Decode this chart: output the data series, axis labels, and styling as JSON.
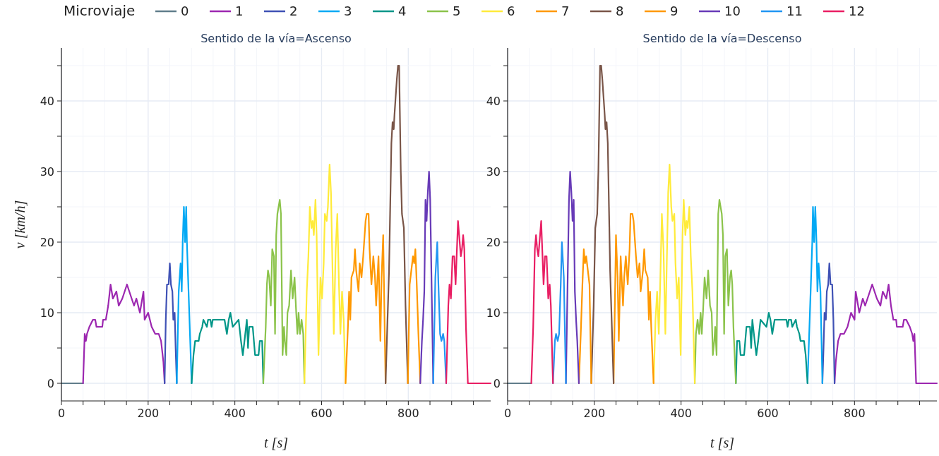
{
  "chart_data": [
    {
      "type": "line",
      "title": "Sentido de la vía=Ascenso",
      "xlabel": "t [s]",
      "ylabel": "v [km/h]",
      "legend_title": "Microviaje",
      "legend": "top",
      "grid": true,
      "xlim": [
        0,
        990
      ],
      "xticks": [
        0,
        {
          "value": 50,
          "label": null
        },
        {
          "value": 100,
          "label": null
        },
        {
          "value": 150,
          "label": null
        },
        200,
        {
          "value": 250,
          "label": null
        },
        {
          "value": 300,
          "label": null
        },
        {
          "value": 350,
          "label": null
        },
        400,
        {
          "value": 450,
          "label": null
        },
        {
          "value": 500,
          "label": null
        },
        {
          "value": 550,
          "label": null
        },
        600,
        {
          "value": 650,
          "label": null
        },
        {
          "value": 700,
          "label": null
        },
        {
          "value": 750,
          "label": null
        },
        800,
        {
          "value": 850,
          "label": null
        },
        {
          "value": 900,
          "label": null
        },
        {
          "value": 950,
          "label": null
        }
      ],
      "ylim": [
        -2.5,
        47.5
      ],
      "yticks": [
        0,
        {
          "value": 5,
          "label": null
        },
        10,
        {
          "value": 15,
          "label": null
        },
        20,
        {
          "value": 25,
          "label": null
        },
        30,
        {
          "value": 35,
          "label": null
        },
        40,
        {
          "value": 45,
          "label": null
        }
      ],
      "series": [
        {
          "name": "0",
          "color": "#607d8b",
          "x": [
            0,
            49.9
          ],
          "values": [
            0,
            0
          ]
        },
        {
          "name": "1",
          "color": "#9c27b0",
          "x": [
            49.9,
            53.7,
            56.4,
            59,
            64.5,
            72.6,
            78,
            80.8,
            94.3,
            96,
            102.4,
            107.9,
            113.3,
            118.7,
            126.8,
            132.2,
            140.4,
            145.8,
            151.2,
            156.6,
            162,
            167.5,
            172.9,
            181,
            183.7,
            189.2,
            191.9,
            200,
            208.1,
            216.3,
            224.4,
            229.8,
            235.2,
            238
          ],
          "values": [
            0,
            7,
            6,
            7,
            8,
            9,
            9,
            8,
            8,
            9,
            9,
            11,
            14,
            12,
            13,
            11,
            12,
            13,
            14,
            13,
            12,
            11,
            12,
            10,
            11,
            13,
            9,
            10,
            8,
            7,
            7,
            6,
            3,
            0
          ]
        },
        {
          "name": "2",
          "color": "#3f51b5",
          "x": [
            238,
            240.7,
            243.4,
            247.2,
            250,
            252.6,
            255.9,
            258,
            261.2,
            263.4,
            266
          ],
          "values": [
            0,
            9,
            14,
            14,
            17,
            14,
            13,
            9,
            10,
            5,
            0
          ]
        },
        {
          "name": "3",
          "color": "#03a9f4",
          "x": [
            266,
            270.5,
            274.8,
            277.5,
            279.7,
            282.4,
            285.1,
            287.8,
            289.4,
            292.1,
            300.3
          ],
          "values": [
            0,
            13,
            17,
            13,
            20,
            25,
            20,
            25,
            20,
            15,
            0
          ]
        },
        {
          "name": "4",
          "color": "#009688",
          "x": [
            300.3,
            304.6,
            308.4,
            316.5,
            319.2,
            324.7,
            327.4,
            335.5,
            338.2,
            343.6,
            346.3,
            349,
            376.2,
            381.6,
            385.9,
            389.7,
            395.1,
            408.7,
            414.1,
            418.4,
            422.2,
            427.6,
            430.3,
            433,
            441.2,
            446.6,
            454.7,
            457.5,
            462.9,
            465.6
          ],
          "values": [
            0,
            4,
            6,
            6,
            7,
            8,
            9,
            8,
            9,
            9,
            8,
            9,
            9,
            7,
            9,
            10,
            8,
            9,
            6,
            4,
            6,
            9,
            5,
            8,
            8,
            4,
            4,
            6,
            6,
            0
          ]
        },
        {
          "name": "5",
          "color": "#8bc34a",
          "x": [
            465.6,
            471.2,
            473.9,
            476.4,
            479.2,
            482.9,
            486.2,
            490,
            492.7,
            495.4,
            498.1,
            503.6,
            506.3,
            510.1,
            513.3,
            515.4,
            518.7,
            521.4,
            525.2,
            529.5,
            533.3,
            537.7,
            541.5,
            544.2,
            546.9,
            550.1,
            553.9,
            557.7,
            560.4
          ],
          "values": [
            0,
            8,
            14,
            16,
            15,
            11,
            19,
            18,
            7,
            21,
            24,
            26,
            24,
            4,
            8,
            6,
            4,
            10,
            11,
            16,
            12,
            15,
            10,
            7,
            10,
            7,
            9,
            7,
            0
          ]
        },
        {
          "name": "6",
          "color": "#ffeb3b",
          "x": [
            560.4,
            565.8,
            569.6,
            572.9,
            576.7,
            579.4,
            582.1,
            585.9,
            588.6,
            592.9,
            597.3,
            601.1,
            604.9,
            607.6,
            611.9,
            614.6,
            618.5,
            621.7,
            628.2,
            632.5,
            636.3,
            640.1,
            643.4,
            647.2,
            651,
            655.3
          ],
          "values": [
            0,
            13,
            18,
            25,
            22,
            23,
            21,
            26,
            21,
            4,
            15,
            12,
            17,
            24,
            23,
            25,
            31,
            27,
            7,
            19,
            24,
            14,
            7,
            13,
            9,
            0
          ]
        },
        {
          "name": "7",
          "color": "#ff9800",
          "x": [
            655.3,
            660.8,
            663.5,
            666.2,
            668.9,
            674.3,
            677,
            679.8,
            685.2,
            687.9,
            692.2,
            696,
            701.5,
            704.2,
            708.5,
            710.7,
            715,
            719.4,
            723.2,
            725.9,
            731.3,
            735.6,
            738.4,
            742.1,
            747.6
          ],
          "values": [
            0,
            8,
            13,
            9,
            15,
            16,
            19,
            16,
            13,
            17,
            15,
            18,
            23,
            24,
            24,
            19,
            14,
            18,
            15,
            11,
            18,
            6,
            15,
            21,
            0
          ]
        },
        {
          "name": "8",
          "color": "#795548",
          "x": [
            747.6,
            755.6,
            758.3,
            761,
            763.7,
            766.4,
            768.1,
            770.2,
            773.5,
            776.2,
            778.9,
            782.7,
            785.4,
            789.8,
            793.6,
            799
          ],
          "values": [
            0,
            16,
            25,
            34,
            37,
            36,
            38,
            40,
            43,
            45,
            45,
            30,
            24,
            22,
            11,
            0
          ]
        },
        {
          "name": "9",
          "color": "#ff9800",
          "x": [
            799,
            803.2,
            807,
            810.8,
            813.6,
            816.3,
            819.5,
            823.3,
            827.6
          ],
          "values": [
            0,
            14,
            16,
            18,
            17,
            19,
            14,
            7,
            0
          ]
        },
        {
          "name": "10",
          "color": "#673ab7",
          "x": [
            827.6,
            831.4,
            834.1,
            836.9,
            839.6,
            842.3,
            845,
            847.8,
            850.5,
            857.5
          ],
          "values": [
            0,
            6,
            9,
            13,
            26,
            23,
            27,
            30,
            26,
            0
          ]
        },
        {
          "name": "11",
          "color": "#2196f3",
          "x": [
            857.5,
            862.4,
            866.8,
            869.5,
            873.3,
            876.5,
            880.3,
            883,
            887.4
          ],
          "values": [
            0,
            15,
            20,
            14,
            7,
            6,
            7,
            6,
            0
          ]
        },
        {
          "name": "12",
          "color": "#e91e63",
          "x": [
            887.4,
            892.3,
            895,
            898.3,
            902.1,
            905.9,
            909.1,
            914.6,
            921.1,
            923.8,
            926.5,
            929.2,
            933,
            937.4,
            990
          ],
          "values": [
            0,
            11,
            14,
            12,
            18,
            18,
            14,
            23,
            18,
            19,
            21,
            19,
            8,
            0,
            0
          ]
        }
      ]
    },
    {
      "type": "line",
      "title": "Sentido de la vía=Descenso",
      "xlabel": "t [s]",
      "grid": true,
      "xlim": [
        0,
        990
      ],
      "xticks": [
        0,
        {
          "value": 50,
          "label": null
        },
        {
          "value": 100,
          "label": null
        },
        {
          "value": 150,
          "label": null
        },
        200,
        {
          "value": 250,
          "label": null
        },
        {
          "value": 300,
          "label": null
        },
        {
          "value": 350,
          "label": null
        },
        400,
        {
          "value": 450,
          "label": null
        },
        {
          "value": 500,
          "label": null
        },
        {
          "value": 550,
          "label": null
        },
        600,
        {
          "value": 650,
          "label": null
        },
        {
          "value": 700,
          "label": null
        },
        {
          "value": 750,
          "label": null
        },
        800,
        {
          "value": 850,
          "label": null
        },
        {
          "value": 900,
          "label": null
        },
        {
          "value": 950,
          "label": null
        }
      ],
      "ylim": [
        -2.5,
        47.5
      ],
      "yticks": [
        0,
        {
          "value": 5,
          "label": null
        },
        10,
        {
          "value": 15,
          "label": null
        },
        20,
        {
          "value": 25,
          "label": null
        },
        30,
        {
          "value": 35,
          "label": null
        },
        40,
        {
          "value": 45,
          "label": null
        }
      ],
      "series": [
        {
          "color": "#607d8b",
          "x": [
            0,
            54.6
          ],
          "values": [
            0,
            0
          ]
        },
        {
          "color": "#9c27b0",
          "x": [
            754,
            756.8,
            762.2,
            767.6,
            775.7,
            783.9,
            792,
            800.1,
            802.8,
            808.3,
            811,
            819.1,
            824.5,
            830,
            835.4,
            840.8,
            846.2,
            851.6,
            859.8,
            865.2,
            873.3,
            878.7,
            884.1,
            889.6,
            896,
            897.7,
            911.2,
            914,
            919.4,
            927.5,
            933,
            935.6,
            938.3,
            942.1,
            990
          ],
          "values": [
            0,
            3,
            6,
            7,
            7,
            8,
            10,
            9,
            13,
            11,
            10,
            12,
            11,
            12,
            13,
            14,
            13,
            12,
            11,
            13,
            12,
            14,
            11,
            9,
            9,
            8,
            8,
            9,
            9,
            8,
            7,
            6,
            7,
            0,
            0
          ]
        },
        {
          "color": "#3f51b5",
          "x": [
            726,
            728.6,
            730.8,
            734,
            736.1,
            739.4,
            742,
            744.8,
            748.6,
            751.3,
            754
          ],
          "values": [
            0,
            5,
            10,
            9,
            13,
            14,
            17,
            14,
            14,
            9,
            0
          ]
        },
        {
          "color": "#03a9f4",
          "x": [
            691.7,
            699.9,
            702.6,
            704.2,
            706.9,
            709.6,
            712.3,
            714.5,
            717.2,
            721.5,
            726
          ],
          "values": [
            0,
            15,
            20,
            25,
            20,
            25,
            20,
            13,
            17,
            13,
            0
          ]
        },
        {
          "color": "#009688",
          "x": [
            526.4,
            529.1,
            534.5,
            537.3,
            545.4,
            550.8,
            559,
            561.7,
            564.4,
            569.8,
            573.6,
            577.9,
            583.3,
            596.9,
            602.3,
            606.1,
            610.4,
            615.8,
            643,
            645.7,
            648.4,
            653.8,
            656.5,
            664.6,
            667.3,
            672.8,
            675.5,
            683.6,
            687.4,
            691.7
          ],
          "values": [
            0,
            6,
            6,
            4,
            4,
            8,
            8,
            5,
            9,
            6,
            4,
            6,
            9,
            8,
            10,
            9,
            7,
            9,
            9,
            8,
            9,
            9,
            8,
            9,
            8,
            7,
            6,
            6,
            4,
            0
          ]
        },
        {
          "color": "#8bc34a",
          "x": [
            431.6,
            434.3,
            438.1,
            441.9,
            445.1,
            447.8,
            450.5,
            454.3,
            458.7,
            462.5,
            466.8,
            470.6,
            473.3,
            476.6,
            478.7,
            481.9,
            485.7,
            488.4,
            493.9,
            496.6,
            499.3,
            502,
            505.8,
            509.1,
            512.8,
            515.6,
            518.1,
            520.8,
            526.4
          ],
          "values": [
            0,
            7,
            9,
            7,
            10,
            7,
            10,
            15,
            12,
            16,
            11,
            10,
            4,
            6,
            8,
            4,
            24,
            26,
            24,
            21,
            7,
            18,
            19,
            11,
            15,
            16,
            14,
            8,
            0
          ]
        },
        {
          "color": "#ffeb3b",
          "x": [
            336.7,
            341,
            344.8,
            348.6,
            351.9,
            355.7,
            359.5,
            363.8,
            370.3,
            373.5,
            377.4,
            380.1,
            384.4,
            387.1,
            390.9,
            394.7,
            399.1,
            403.4,
            406.1,
            409.9,
            412.6,
            415.3,
            419.1,
            422.4,
            426.2,
            431.6
          ],
          "values": [
            0,
            9,
            13,
            7,
            14,
            24,
            19,
            7,
            27,
            31,
            25,
            23,
            24,
            17,
            12,
            15,
            4,
            21,
            26,
            21,
            23,
            22,
            25,
            18,
            13,
            0
          ]
        },
        {
          "color": "#ff9800",
          "x": [
            244.4,
            249.9,
            253.6,
            256.4,
            260.7,
            266.1,
            268.8,
            272.6,
            277,
            281.3,
            283.5,
            287.8,
            290.5,
            296,
            299.8,
            304.1,
            306.8,
            312.2,
            315,
            317.7,
            323.1,
            325.8,
            328.5,
            331.2,
            336.7
          ],
          "values": [
            0,
            21,
            15,
            6,
            18,
            11,
            15,
            18,
            14,
            19,
            24,
            24,
            23,
            18,
            15,
            17,
            13,
            16,
            19,
            16,
            15,
            9,
            13,
            8,
            0
          ]
        },
        {
          "color": "#795548",
          "x": [
            193,
            198.4,
            202.2,
            206.6,
            209.3,
            213.1,
            215.8,
            218.5,
            221.8,
            223.9,
            225.6,
            228.3,
            231,
            233.7,
            236.4,
            244.4
          ],
          "values": [
            0,
            11,
            22,
            24,
            30,
            45,
            45,
            43,
            40,
            38,
            36,
            37,
            34,
            25,
            16,
            0
          ]
        },
        {
          "color": "#ff9800",
          "x": [
            164.4,
            168.7,
            172.5,
            175.7,
            178.4,
            181.2,
            185,
            188.8,
            193
          ],
          "values": [
            0,
            7,
            14,
            19,
            17,
            18,
            16,
            14,
            0
          ]
        },
        {
          "color": "#673ab7",
          "x": [
            134.5,
            141.5,
            144.2,
            147,
            149.7,
            152.4,
            155.1,
            157.9,
            160.6,
            164.4
          ],
          "values": [
            0,
            26,
            30,
            27,
            23,
            26,
            13,
            9,
            6,
            0
          ]
        },
        {
          "color": "#2196f3",
          "x": [
            104.6,
            109,
            111.7,
            115.5,
            118.7,
            122.5,
            125.2,
            129.6,
            134.5
          ],
          "values": [
            0,
            6,
            7,
            6,
            7,
            14,
            20,
            15,
            0
          ]
        },
        {
          "color": "#e91e63",
          "x": [
            54.6,
            59,
            62.8,
            65.5,
            68.2,
            70.9,
            77.4,
            82.9,
            86.1,
            89.9,
            93.7,
            97,
            99.7,
            104.6
          ],
          "values": [
            0,
            8,
            19,
            21,
            19,
            18,
            23,
            14,
            18,
            18,
            12,
            14,
            11,
            0
          ]
        }
      ]
    }
  ]
}
